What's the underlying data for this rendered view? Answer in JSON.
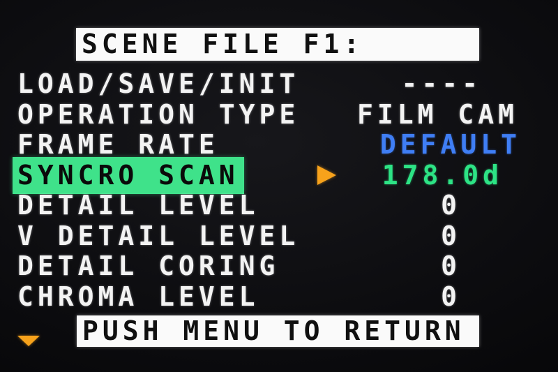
{
  "screen": {
    "title": "SCENE FILE F1:",
    "footer": "PUSH MENU TO RETURN"
  },
  "menu": {
    "rows": [
      {
        "label": "LOAD/SAVE/INIT",
        "value": "----",
        "selected": false,
        "value_color": "white"
      },
      {
        "label": "OPERATION TYPE",
        "value": "FILM CAM",
        "selected": false,
        "value_color": "white"
      },
      {
        "label": "FRAME RATE",
        "value": "DEFAULT",
        "selected": false,
        "value_color": "blue"
      },
      {
        "label": "SYNCRO SCAN",
        "value": "178.0d",
        "selected": true,
        "value_color": "green"
      },
      {
        "label": "DETAIL LEVEL",
        "value": "0",
        "selected": false,
        "value_color": "white"
      },
      {
        "label": "V DETAIL LEVEL",
        "value": "0",
        "selected": false,
        "value_color": "white"
      },
      {
        "label": "DETAIL CORING",
        "value": "0",
        "selected": false,
        "value_color": "white"
      },
      {
        "label": "CHROMA LEVEL",
        "value": "0",
        "selected": false,
        "value_color": "white"
      }
    ]
  },
  "icons": {
    "selected_item_cursor": "right-triangle-icon",
    "scroll_more_below": "down-triangle-icon"
  },
  "colors": {
    "highlight_green": "#3fe28a",
    "value_green": "#2de385",
    "value_blue": "#3f7ef5",
    "accent_orange": "#f7a21b",
    "bar_white": "#fafafa",
    "text_white": "#f3f3f3",
    "background": "#0d0d10"
  }
}
